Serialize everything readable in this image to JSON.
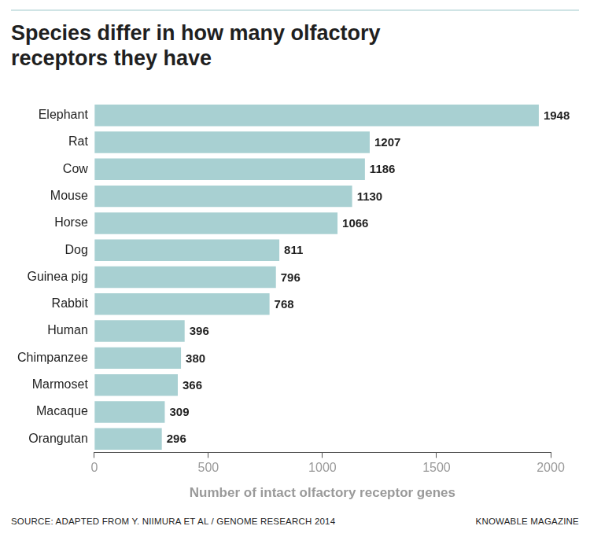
{
  "chart_data": {
    "type": "bar",
    "orientation": "horizontal",
    "title": "Species differ in how many olfactory receptors they have",
    "x_label": "Number of intact olfactory receptor genes",
    "annotations": [
      "SOURCE: ADAPTED FROM Y. NIIMURA ET AL / GENOME RESEARCH 2014",
      "KNOWABLE MAGAZINE"
    ],
    "categories": [
      "Elephant",
      "Rat",
      "Cow",
      "Mouse",
      "Horse",
      "Dog",
      "Guinea pig",
      "Rabbit",
      "Human",
      "Chimpanzee",
      "Marmoset",
      "Macaque",
      "Orangutan"
    ],
    "values": [
      1948,
      1207,
      1186,
      1130,
      1066,
      811,
      796,
      768,
      396,
      380,
      366,
      309,
      296
    ],
    "color": "#a8d0d2",
    "xlim": [
      0,
      2000
    ],
    "xticks": [
      0,
      500,
      1000,
      1500,
      2000
    ],
    "grid": false,
    "data_labels": true
  }
}
